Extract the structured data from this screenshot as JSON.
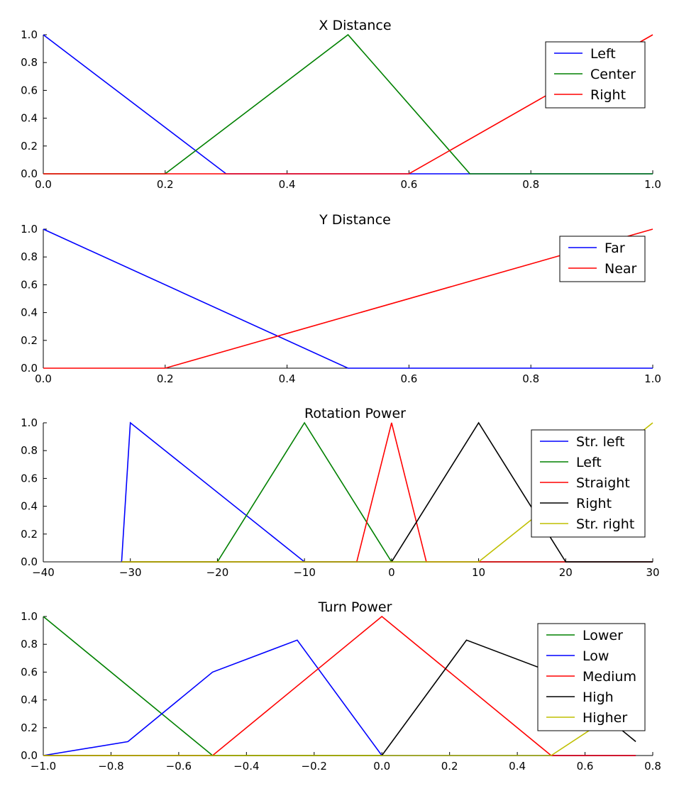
{
  "chart_data": [
    {
      "type": "line",
      "title": "X Distance",
      "xlim": [
        0,
        1
      ],
      "ylim": [
        0,
        1
      ],
      "xticks": [
        0.0,
        0.2,
        0.4,
        0.6,
        0.8,
        1.0
      ],
      "xtick_labels": [
        "0.0",
        "0.2",
        "0.4",
        "0.6",
        "0.8",
        "1.0"
      ],
      "yticks": [
        0,
        0.2,
        0.4,
        0.6,
        0.8,
        1.0
      ],
      "ytick_labels": [
        "0.0",
        "0.2",
        "0.4",
        "0.6",
        "0.8",
        "1.0"
      ],
      "grid": false,
      "legend": "top-right",
      "series": [
        {
          "name": "Left",
          "color": "#0000ff",
          "x": [
            0,
            0.3,
            1.0
          ],
          "y": [
            1,
            0,
            0
          ]
        },
        {
          "name": "Center",
          "color": "#008000",
          "x": [
            0,
            0.2,
            0.5,
            0.7,
            1.0
          ],
          "y": [
            0,
            0,
            1,
            0,
            0
          ]
        },
        {
          "name": "Right",
          "color": "#ff0000",
          "x": [
            0,
            0.6,
            1.0
          ],
          "y": [
            0,
            0,
            1
          ]
        }
      ]
    },
    {
      "type": "line",
      "title": "Y Distance",
      "xlim": [
        0,
        1
      ],
      "ylim": [
        0,
        1
      ],
      "xticks": [
        0.0,
        0.2,
        0.4,
        0.6,
        0.8,
        1.0
      ],
      "xtick_labels": [
        "0.0",
        "0.2",
        "0.4",
        "0.6",
        "0.8",
        "1.0"
      ],
      "yticks": [
        0,
        0.2,
        0.4,
        0.6,
        0.8,
        1.0
      ],
      "ytick_labels": [
        "0.0",
        "0.2",
        "0.4",
        "0.6",
        "0.8",
        "1.0"
      ],
      "grid": false,
      "legend": "top-right",
      "series": [
        {
          "name": "Far",
          "color": "#0000ff",
          "x": [
            0,
            0.5,
            1.0
          ],
          "y": [
            1,
            0,
            0
          ]
        },
        {
          "name": "Near",
          "color": "#ff0000",
          "x": [
            0,
            0.2,
            1.0
          ],
          "y": [
            0,
            0,
            1
          ]
        }
      ]
    },
    {
      "type": "line",
      "title": "Rotation Power",
      "xlim": [
        -40,
        30
      ],
      "ylim": [
        0,
        1
      ],
      "xticks": [
        -40,
        -30,
        -20,
        -10,
        0,
        10,
        20,
        30
      ],
      "xtick_labels": [
        "−40",
        "−30",
        "−20",
        "−10",
        "0",
        "10",
        "20",
        "30"
      ],
      "yticks": [
        0,
        0.2,
        0.4,
        0.6,
        0.8,
        1.0
      ],
      "ytick_labels": [
        "0.0",
        "0.2",
        "0.4",
        "0.6",
        "0.8",
        "1.0"
      ],
      "grid": false,
      "legend": "top-right",
      "series": [
        {
          "name": "Str. left",
          "color": "#0000ff",
          "x": [
            -31,
            -30,
            -10,
            30
          ],
          "y": [
            0,
            1,
            0,
            0
          ]
        },
        {
          "name": "Left",
          "color": "#008000",
          "x": [
            -31,
            -20,
            -10,
            0,
            30
          ],
          "y": [
            0,
            0,
            1,
            0,
            0
          ]
        },
        {
          "name": "Straight",
          "color": "#ff0000",
          "x": [
            -31,
            -4,
            0,
            4,
            30
          ],
          "y": [
            0,
            0,
            1,
            0,
            0
          ]
        },
        {
          "name": "Right",
          "color": "#000000",
          "x": [
            -31,
            0,
            10,
            20,
            30
          ],
          "y": [
            0,
            0,
            1,
            0,
            0
          ]
        },
        {
          "name": "Str. right",
          "color": "#bfbf00",
          "x": [
            -31,
            10,
            30
          ],
          "y": [
            0,
            0,
            1
          ]
        }
      ]
    },
    {
      "type": "line",
      "title": "Turn Power",
      "xlim": [
        -1.0,
        0.8
      ],
      "ylim": [
        0,
        1
      ],
      "xticks": [
        -1.0,
        -0.8,
        -0.6,
        -0.4,
        -0.2,
        0.0,
        0.2,
        0.4,
        0.6,
        0.8
      ],
      "xtick_labels": [
        "−1.0",
        "−0.8",
        "−0.6",
        "−0.4",
        "−0.2",
        "0.0",
        "0.2",
        "0.4",
        "0.6",
        "0.8"
      ],
      "yticks": [
        0,
        0.2,
        0.4,
        0.6,
        0.8,
        1.0
      ],
      "ytick_labels": [
        "0.0",
        "0.2",
        "0.4",
        "0.6",
        "0.8",
        "1.0"
      ],
      "grid": false,
      "legend": "top-right",
      "series": [
        {
          "name": "Lower",
          "color": "#008000",
          "x": [
            -1.0,
            -0.5,
            0.75
          ],
          "y": [
            1,
            0,
            0
          ]
        },
        {
          "name": "Low",
          "color": "#0000ff",
          "x": [
            -1.0,
            -0.75,
            -0.5,
            -0.25,
            0.0,
            0.75
          ],
          "y": [
            0,
            0.1,
            0.6,
            0.83,
            0,
            0
          ]
        },
        {
          "name": "Medium",
          "color": "#ff0000",
          "x": [
            -1.0,
            -0.5,
            0.0,
            0.5,
            0.75
          ],
          "y": [
            0,
            0,
            1,
            0,
            0
          ]
        },
        {
          "name": "High",
          "color": "#000000",
          "x": [
            -1.0,
            0.0,
            0.25,
            0.5,
            0.75
          ],
          "y": [
            0,
            0,
            0.83,
            0.6,
            0.1
          ]
        },
        {
          "name": "Higher",
          "color": "#bfbf00",
          "x": [
            -1.0,
            0.5,
            0.75
          ],
          "y": [
            0,
            0,
            0.4
          ]
        }
      ]
    }
  ]
}
